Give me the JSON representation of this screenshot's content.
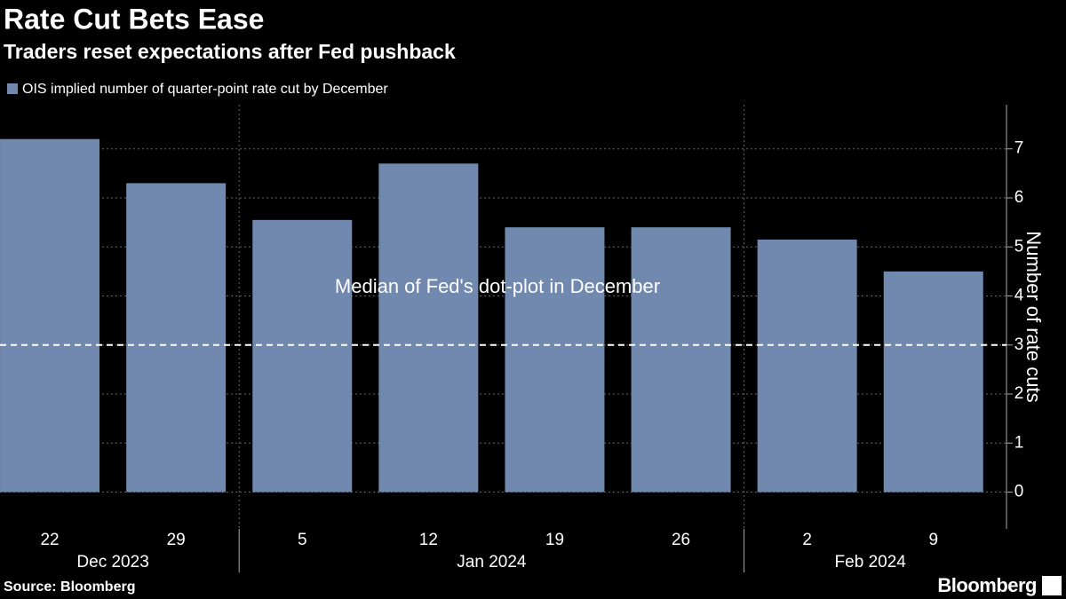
{
  "chart_data": {
    "type": "bar",
    "title": "Rate Cut Bets Ease",
    "subtitle": "Traders reset expectations after Fed pushback",
    "legend": "OIS implied number of quarter-point rate cut by December",
    "ylabel": "Number of rate cuts",
    "categories": [
      "22",
      "29",
      "5",
      "12",
      "19",
      "26",
      "2",
      "9"
    ],
    "months": [
      "Dec 2023",
      "Dec 2023",
      "Jan 2024",
      "Jan 2024",
      "Jan 2024",
      "Jan 2024",
      "Feb 2024",
      "Feb 2024"
    ],
    "values": [
      7.2,
      6.3,
      5.55,
      6.7,
      5.4,
      5.4,
      5.15,
      4.5
    ],
    "color": "#7189ae",
    "ylim": [
      -0.75,
      7.9
    ],
    "yticks": [
      0,
      1,
      2,
      3,
      4,
      5,
      6,
      7
    ],
    "grid": true,
    "reference_line": {
      "value": 3,
      "label": "Median of Fed's dot-plot in December"
    },
    "source": "Source: Bloomberg",
    "brand": "Bloomberg"
  }
}
